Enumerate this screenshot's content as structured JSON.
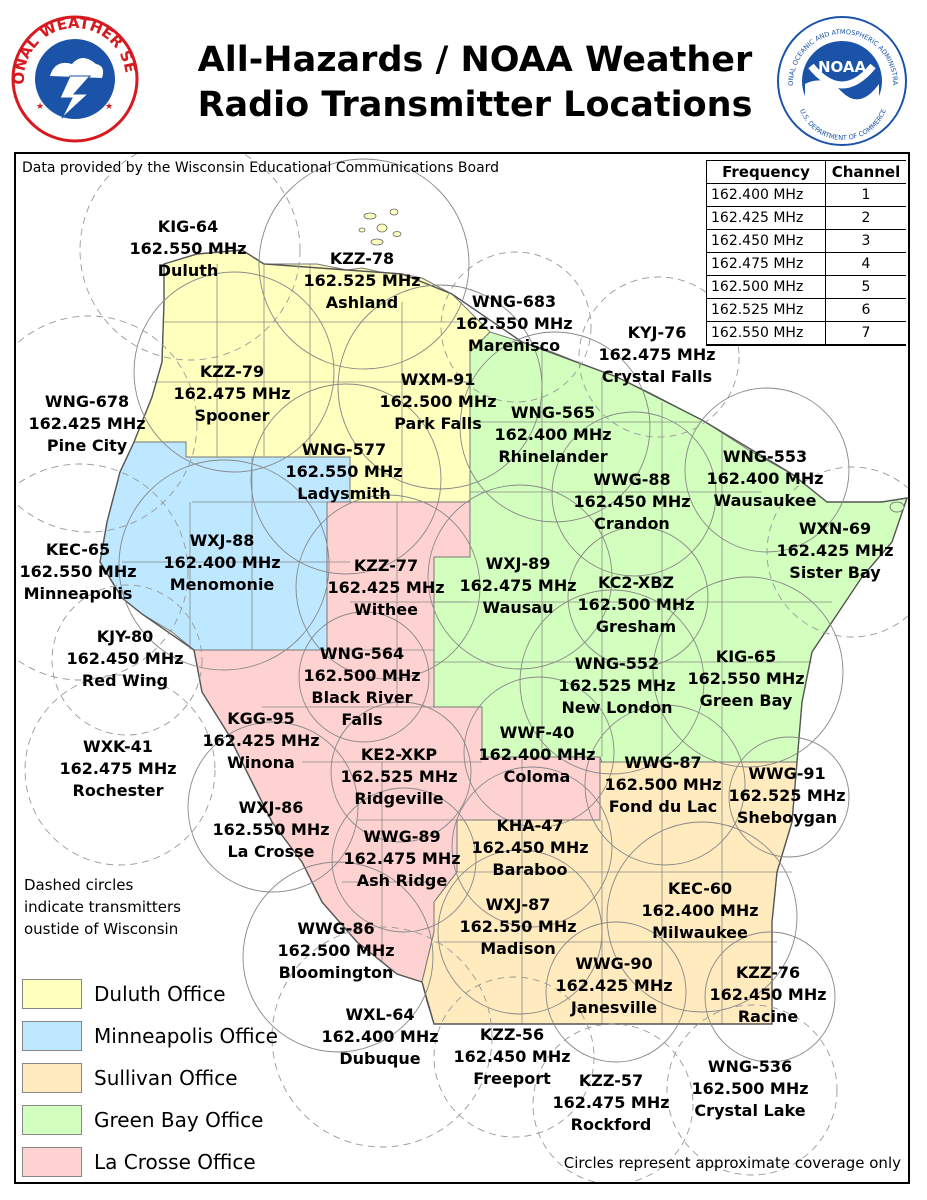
{
  "header": {
    "title_line1": "All-Hazards / NOAA Weather",
    "title_line2": "Radio Transmitter Locations",
    "nws_logo_text": "NATIONAL WEATHER SERVICE",
    "noaa_logo_text": "NATIONAL OCEANIC AND ATMOSPHERIC ADMINISTRATION",
    "noaa_logo_bottom": "U.S. DEPARTMENT OF COMMERCE",
    "noaa_logo_center": "NOAA"
  },
  "data_source": "Data provided by the Wisconsin Educational Communications Board",
  "frequency_table": {
    "headers": [
      "Frequency",
      "Channel"
    ],
    "rows": [
      [
        "162.400 MHz",
        "1"
      ],
      [
        "162.425 MHz",
        "2"
      ],
      [
        "162.450 MHz",
        "3"
      ],
      [
        "162.475 MHz",
        "4"
      ],
      [
        "162.500 MHz",
        "5"
      ],
      [
        "162.525 MHz",
        "6"
      ],
      [
        "162.550 MHz",
        "7"
      ]
    ]
  },
  "transmitters": [
    {
      "callsign": "KIG-64",
      "freq": "162.550 MHz",
      "city": "Duluth"
    },
    {
      "callsign": "KZZ-78",
      "freq": "162.525 MHz",
      "city": "Ashland"
    },
    {
      "callsign": "WNG-683",
      "freq": "162.550 MHz",
      "city": "Marenisco"
    },
    {
      "callsign": "KYJ-76",
      "freq": "162.475 MHz",
      "city": "Crystal Falls"
    },
    {
      "callsign": "KZZ-79",
      "freq": "162.475 MHz",
      "city": "Spooner"
    },
    {
      "callsign": "WXM-91",
      "freq": "162.500 MHz",
      "city": "Park Falls"
    },
    {
      "callsign": "WNG-678",
      "freq": "162.425 MHz",
      "city": "Pine City"
    },
    {
      "callsign": "WNG-565",
      "freq": "162.400 MHz",
      "city": "Rhinelander"
    },
    {
      "callsign": "WNG-577",
      "freq": "162.550 MHz",
      "city": "Ladysmith"
    },
    {
      "callsign": "WNG-553",
      "freq": "162.400 MHz",
      "city": "Wausaukee"
    },
    {
      "callsign": "WWG-88",
      "freq": "162.450 MHz",
      "city": "Crandon"
    },
    {
      "callsign": "WXN-69",
      "freq": "162.425 MHz",
      "city": "Sister Bay"
    },
    {
      "callsign": "KEC-65",
      "freq": "162.550 MHz",
      "city": "Minneapolis"
    },
    {
      "callsign": "WXJ-88",
      "freq": "162.400 MHz",
      "city": "Menomonie"
    },
    {
      "callsign": "KZZ-77",
      "freq": "162.425 MHz",
      "city": "Withee"
    },
    {
      "callsign": "WXJ-89",
      "freq": "162.475 MHz",
      "city": "Wausau"
    },
    {
      "callsign": "KC2-XBZ",
      "freq": "162.500 MHz",
      "city": "Gresham"
    },
    {
      "callsign": "KJY-80",
      "freq": "162.450 MHz",
      "city": "Red Wing"
    },
    {
      "callsign": "WNG-564",
      "freq": "162.500 MHz",
      "city": "Black River Falls"
    },
    {
      "callsign": "WNG-552",
      "freq": "162.525 MHz",
      "city": "New London"
    },
    {
      "callsign": "KIG-65",
      "freq": "162.550 MHz",
      "city": "Green Bay"
    },
    {
      "callsign": "KGG-95",
      "freq": "162.425 MHz",
      "city": "Winona"
    },
    {
      "callsign": "WWF-40",
      "freq": "162.400 MHz",
      "city": "Coloma"
    },
    {
      "callsign": "WXK-41",
      "freq": "162.475 MHz",
      "city": "Rochester"
    },
    {
      "callsign": "KE2-XKP",
      "freq": "162.525 MHz",
      "city": "Ridgeville"
    },
    {
      "callsign": "WWG-87",
      "freq": "162.500 MHz",
      "city": "Fond du Lac"
    },
    {
      "callsign": "WWG-91",
      "freq": "162.525 MHz",
      "city": "Sheboygan"
    },
    {
      "callsign": "WXJ-86",
      "freq": "162.550 MHz",
      "city": "La Crosse"
    },
    {
      "callsign": "KHA-47",
      "freq": "162.450 MHz",
      "city": "Baraboo"
    },
    {
      "callsign": "WWG-89",
      "freq": "162.475 MHz",
      "city": "Ash Ridge"
    },
    {
      "callsign": "KEC-60",
      "freq": "162.400 MHz",
      "city": "Milwaukee"
    },
    {
      "callsign": "WWG-86",
      "freq": "162.500 MHz",
      "city": "Bloomington"
    },
    {
      "callsign": "WXJ-87",
      "freq": "162.550 MHz",
      "city": "Madison"
    },
    {
      "callsign": "WWG-90",
      "freq": "162.425 MHz",
      "city": "Janesville"
    },
    {
      "callsign": "KZZ-76",
      "freq": "162.450 MHz",
      "city": "Racine"
    },
    {
      "callsign": "WXL-64",
      "freq": "162.400 MHz",
      "city": "Dubuque"
    },
    {
      "callsign": "KZZ-56",
      "freq": "162.450 MHz",
      "city": "Freeport"
    },
    {
      "callsign": "WNG-536",
      "freq": "162.500 MHz",
      "city": "Crystal Lake"
    },
    {
      "callsign": "KZZ-57",
      "freq": "162.475 MHz",
      "city": "Rockford"
    }
  ],
  "dashed_note": [
    "Dashed circles",
    "indicate transmitters",
    "oustide of Wisconsin"
  ],
  "legend": [
    {
      "label": "Duluth Office",
      "color": "#ffffbe"
    },
    {
      "label": "Minneapolis Office",
      "color": "#bee8ff"
    },
    {
      "label": "Sullivan Office",
      "color": "#ffebbe"
    },
    {
      "label": "Green Bay Office",
      "color": "#d3ffbe"
    },
    {
      "label": "La Crosse Office",
      "color": "#ffd2d2"
    }
  ],
  "coverage_note": "Circles represent approximate coverage only"
}
